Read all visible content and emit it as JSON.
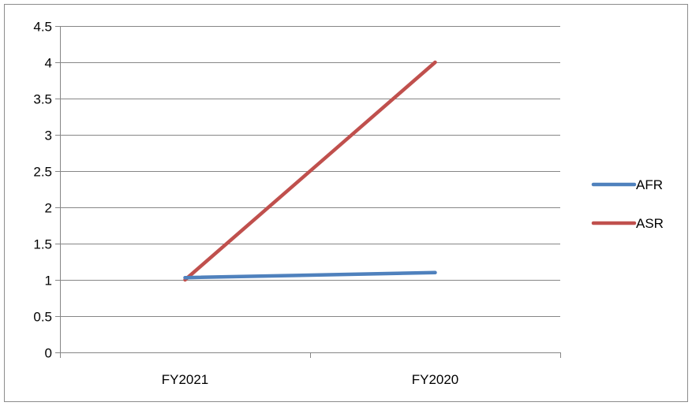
{
  "chart_data": {
    "type": "line",
    "title": "",
    "xlabel": "",
    "ylabel": "",
    "categories": [
      "FY2021",
      "FY2020"
    ],
    "ylim": [
      0,
      4.5
    ],
    "yticks": [
      0,
      0.5,
      1,
      1.5,
      2,
      2.5,
      3,
      3.5,
      4,
      4.5
    ],
    "ytick_labels": [
      "0",
      "0.5",
      "1",
      "1.5",
      "2",
      "2.5",
      "3",
      "3.5",
      "4",
      "4.5"
    ],
    "grid": "horizontal",
    "legend_position": "right",
    "series": [
      {
        "name": "AFR",
        "values": [
          1.03,
          1.1
        ],
        "color": "#4F81BD"
      },
      {
        "name": "ASR",
        "values": [
          1.0,
          4.0
        ],
        "color": "#C0504D"
      }
    ]
  }
}
